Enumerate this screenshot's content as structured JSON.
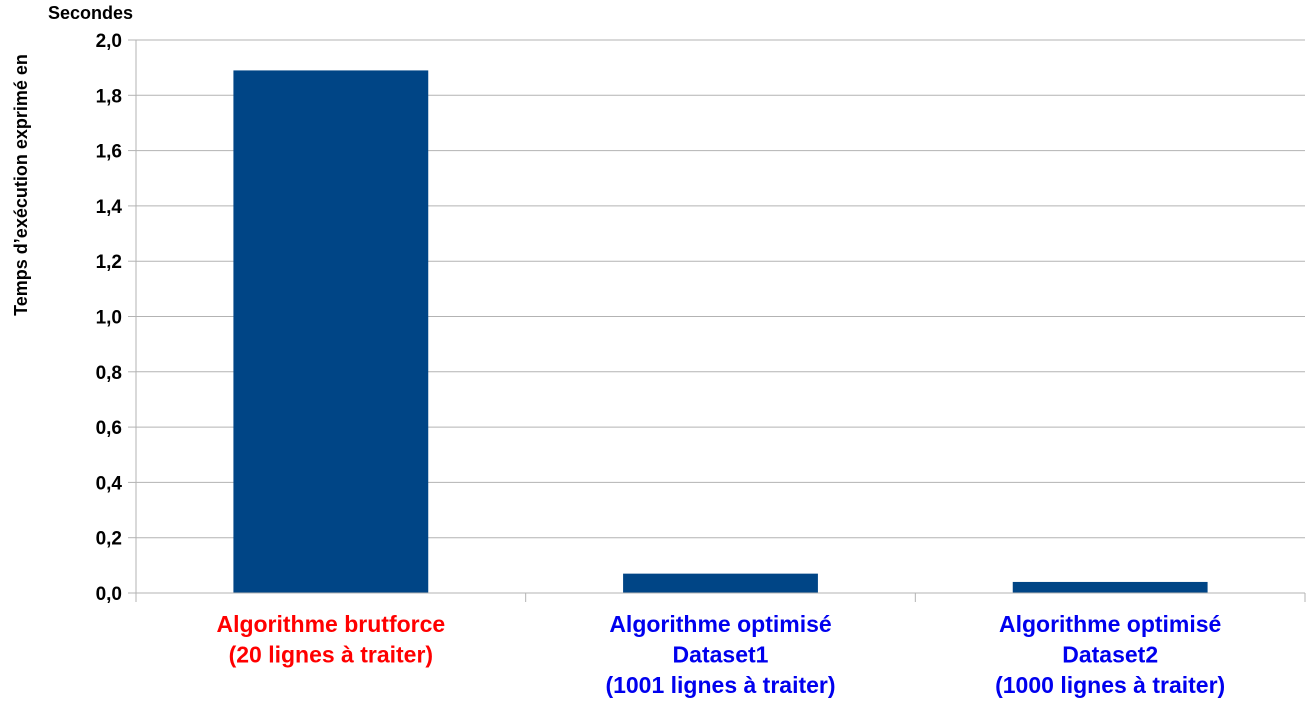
{
  "chart_data": {
    "type": "bar",
    "title": "",
    "xlabel": "",
    "ylabel_line1": "Temps d’exécution exprimé en",
    "ylabel_line2": "Secondes",
    "ylim": [
      0,
      2
    ],
    "yticks": [
      {
        "value": 0.0,
        "label": "0,0"
      },
      {
        "value": 0.2,
        "label": "0,2"
      },
      {
        "value": 0.4,
        "label": "0,4"
      },
      {
        "value": 0.6,
        "label": "0,6"
      },
      {
        "value": 0.8,
        "label": "0,8"
      },
      {
        "value": 1.0,
        "label": "1,0"
      },
      {
        "value": 1.2,
        "label": "1,2"
      },
      {
        "value": 1.4,
        "label": "1,4"
      },
      {
        "value": 1.6,
        "label": "1,6"
      },
      {
        "value": 1.8,
        "label": "1,8"
      },
      {
        "value": 2.0,
        "label": "2,0"
      }
    ],
    "grid": true,
    "categories": [
      {
        "lines": [
          "Algorithme brutforce",
          "(20 lignes à traiter)"
        ],
        "color": "#ff0000"
      },
      {
        "lines": [
          "Algorithme optimisé",
          "Dataset1",
          "(1001 lignes à traiter)"
        ],
        "color": "#0000ee"
      },
      {
        "lines": [
          "Algorithme optimisé",
          "Dataset2",
          "(1000 lignes à traiter)"
        ],
        "color": "#0000ee"
      }
    ],
    "values": [
      1.89,
      0.07,
      0.04
    ],
    "bar_color": "#004586",
    "grid_color": "#b3b3b3"
  }
}
